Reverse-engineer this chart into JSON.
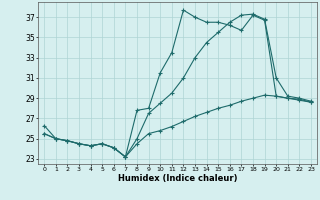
{
  "xlabel": "Humidex (Indice chaleur)",
  "background_color": "#d6efef",
  "grid_color": "#aed4d4",
  "line_color": "#1e6b6b",
  "xlim": [
    -0.5,
    23.5
  ],
  "ylim": [
    22.5,
    38.5
  ],
  "yticks": [
    23,
    25,
    27,
    29,
    31,
    33,
    35,
    37
  ],
  "xticks": [
    0,
    1,
    2,
    3,
    4,
    5,
    6,
    7,
    8,
    9,
    10,
    11,
    12,
    13,
    14,
    15,
    16,
    17,
    18,
    19,
    20,
    21,
    22,
    23
  ],
  "xtick_labels": [
    "0",
    "1",
    "2",
    "3",
    "4",
    "5",
    "6",
    "7",
    "8",
    "9",
    "10",
    "11",
    "12",
    "13",
    "14",
    "15",
    "16",
    "17",
    "18",
    "19",
    "20",
    "21",
    "22",
    "23"
  ],
  "series": [
    {
      "x": [
        0,
        1,
        2,
        3,
        4,
        5,
        6,
        7,
        8,
        9,
        10,
        11,
        12,
        13,
        14,
        15,
        16,
        17,
        18,
        19,
        20,
        21,
        22,
        23
      ],
      "y": [
        26.3,
        25.0,
        24.8,
        24.5,
        24.3,
        24.5,
        24.1,
        23.2,
        27.8,
        28.0,
        31.5,
        33.5,
        37.7,
        37.0,
        36.5,
        36.5,
        36.2,
        35.7,
        37.2,
        36.7,
        29.2,
        29.0,
        28.8,
        28.6
      ]
    },
    {
      "x": [
        0,
        1,
        2,
        3,
        4,
        5,
        6,
        7,
        8,
        9,
        10,
        11,
        12,
        13,
        14,
        15,
        16,
        17,
        18,
        19,
        20,
        21,
        22,
        23
      ],
      "y": [
        25.5,
        25.0,
        24.8,
        24.5,
        24.3,
        24.5,
        24.1,
        23.2,
        25.0,
        27.5,
        28.5,
        29.5,
        31.0,
        33.0,
        34.5,
        35.5,
        36.5,
        37.2,
        37.3,
        36.8,
        31.0,
        29.2,
        29.0,
        28.7
      ]
    },
    {
      "x": [
        0,
        1,
        2,
        3,
        4,
        5,
        6,
        7,
        8,
        9,
        10,
        11,
        12,
        13,
        14,
        15,
        16,
        17,
        18,
        19,
        20,
        21,
        22,
        23
      ],
      "y": [
        25.5,
        25.0,
        24.8,
        24.5,
        24.3,
        24.5,
        24.1,
        23.2,
        24.5,
        25.5,
        25.8,
        26.2,
        26.7,
        27.2,
        27.6,
        28.0,
        28.3,
        28.7,
        29.0,
        29.3,
        29.2,
        29.0,
        28.9,
        28.6
      ]
    }
  ]
}
